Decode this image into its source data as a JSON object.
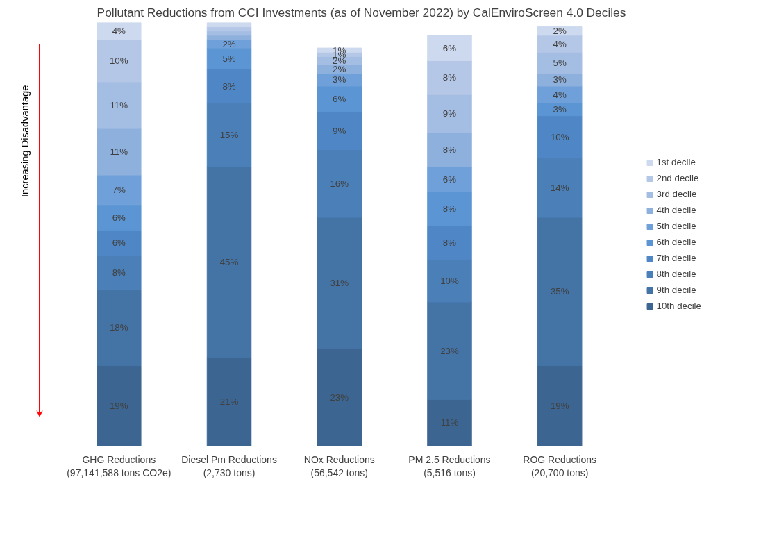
{
  "chart_data": {
    "type": "bar",
    "stacked": true,
    "title": "Pollutant Reductions from CCI Investments (as of November 2022) by CalEnviroScreen 4.0 Deciles",
    "categories": [
      "GHG Reductions\n(97,141,588 tons CO2e)",
      "Diesel Pm Reductions\n(2,730 tons)",
      "NOx Reductions\n(56,542 tons)",
      "PM 2.5 Reductions\n(5,516 tons)",
      "ROG Reductions\n(20,700 tons)"
    ],
    "series": [
      {
        "name": "10th decile",
        "color": "#3c6691",
        "values": [
          19,
          21,
          23,
          11,
          19
        ],
        "value_labels": [
          "19%",
          "21%",
          "23%",
          "11%",
          "19%"
        ]
      },
      {
        "name": "9th decile",
        "color": "#4473a5",
        "values": [
          18,
          45,
          31,
          23,
          35
        ],
        "value_labels": [
          "18%",
          "45%",
          "31%",
          "23%",
          "35%"
        ]
      },
      {
        "name": "8th decile",
        "color": "#4a7fb8",
        "values": [
          8,
          15,
          16,
          10,
          14
        ],
        "value_labels": [
          "8%",
          "15%",
          "16%",
          "10%",
          "14%"
        ]
      },
      {
        "name": "7th decile",
        "color": "#4f87c6",
        "values": [
          6,
          8,
          9,
          8,
          10
        ],
        "value_labels": [
          "6%",
          "8%",
          "9%",
          "8%",
          "10%"
        ]
      },
      {
        "name": "6th decile",
        "color": "#5b95d3",
        "values": [
          6,
          5,
          6,
          8,
          3
        ],
        "value_labels": [
          "6%",
          "5%",
          "6%",
          "8%",
          "3%"
        ]
      },
      {
        "name": "5th decile",
        "color": "#6fa0d9",
        "values": [
          7,
          2,
          3,
          6,
          4
        ],
        "value_labels": [
          "7%",
          "2%",
          "3%",
          "6%",
          "4%"
        ]
      },
      {
        "name": "4th decile",
        "color": "#8eb0dd",
        "values": [
          11,
          1,
          2,
          8,
          3
        ],
        "value_labels": [
          "11%",
          null,
          "2%",
          "8%",
          "3%"
        ]
      },
      {
        "name": "3rd decile",
        "color": "#a4bde3",
        "values": [
          11,
          1,
          2,
          9,
          5
        ],
        "value_labels": [
          "11%",
          null,
          "2%",
          "9%",
          "5%"
        ]
      },
      {
        "name": "2nd decile",
        "color": "#b4c7e7",
        "values": [
          10,
          1,
          1,
          8,
          4
        ],
        "value_labels": [
          "10%",
          null,
          "1%",
          "8%",
          "4%"
        ]
      },
      {
        "name": "1st decile",
        "color": "#cdd9ee",
        "values": [
          4,
          1,
          1,
          6,
          2
        ],
        "value_labels": [
          "4%",
          null,
          "1%",
          "6%",
          "2%"
        ]
      }
    ],
    "tick_labels": "x",
    "legend": "right",
    "grid": false,
    "annotations": [
      "Increasing Disadvantage"
    ]
  }
}
